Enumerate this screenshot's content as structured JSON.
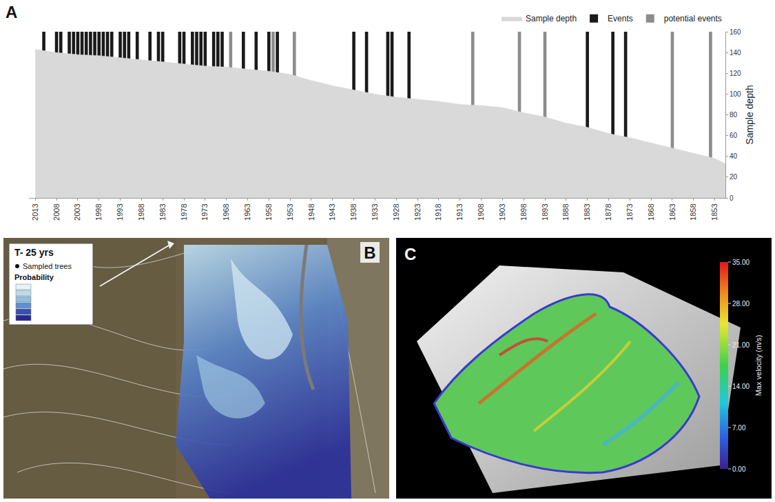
{
  "chart_data": {
    "type": "bar",
    "panel": "A",
    "xlim": [
      2014.5,
      1850.5
    ],
    "xticks": [
      2013,
      2008,
      2003,
      1998,
      1993,
      1988,
      1983,
      1978,
      1973,
      1968,
      1963,
      1958,
      1953,
      1948,
      1943,
      1938,
      1933,
      1928,
      1923,
      1918,
      1913,
      1908,
      1903,
      1898,
      1893,
      1888,
      1883,
      1878,
      1873,
      1868,
      1863,
      1858,
      1853
    ],
    "ylim": [
      0,
      160
    ],
    "yticks": [
      0,
      20,
      40,
      60,
      80,
      100,
      120,
      140,
      160
    ],
    "y_label": "Sample depth",
    "grid": false,
    "legend": "top",
    "series": [
      {
        "name": "Sample depth",
        "type": "area",
        "color": "#d9d9d9",
        "x": [
          2013,
          2008,
          2003,
          1998,
          1993,
          1988,
          1983,
          1978,
          1973,
          1968,
          1963,
          1958,
          1953,
          1948,
          1943,
          1938,
          1933,
          1928,
          1923,
          1918,
          1913,
          1908,
          1903,
          1898,
          1893,
          1888,
          1883,
          1878,
          1873,
          1868,
          1863,
          1858,
          1853,
          1850
        ],
        "values": [
          143,
          140,
          138,
          137,
          135,
          133,
          131,
          129,
          127,
          126,
          124,
          122,
          119,
          113,
          108,
          104,
          100,
          97,
          95,
          93,
          90,
          89,
          87,
          82,
          78,
          72,
          68,
          62,
          58,
          53,
          48,
          43,
          38,
          32
        ]
      },
      {
        "name": "Events",
        "type": "bar",
        "color": "#1a1a1a",
        "x": [
          2011,
          2008,
          2007,
          2005,
          2004,
          2003,
          2002,
          2001,
          2000,
          1999,
          1998,
          1997,
          1996,
          1995,
          1993,
          1992,
          1991,
          1989,
          1986,
          1984,
          1983,
          1979,
          1978,
          1976,
          1975,
          1974,
          1973,
          1971,
          1970,
          1969,
          1964,
          1961,
          1958,
          1956,
          1938,
          1935,
          1930,
          1929,
          1925,
          1883,
          1877,
          1874
        ],
        "values": [
          160,
          160,
          160,
          160,
          160,
          160,
          160,
          160,
          160,
          160,
          160,
          160,
          160,
          160,
          160,
          160,
          160,
          160,
          160,
          160,
          160,
          160,
          160,
          160,
          160,
          160,
          160,
          160,
          160,
          160,
          160,
          160,
          160,
          160,
          160,
          160,
          160,
          160,
          160,
          160,
          160,
          160
        ]
      },
      {
        "name": "potential events",
        "type": "bar",
        "color": "#8c8c8c",
        "x": [
          1967,
          1957,
          1952,
          1910,
          1899,
          1893,
          1863,
          1854
        ],
        "values": [
          160,
          160,
          160,
          160,
          160,
          160,
          160,
          160
        ]
      }
    ]
  },
  "map_panel": {
    "panel": "B",
    "title": "T- 25 yrs",
    "legend_items": [
      "Sampled trees",
      "Probability"
    ]
  },
  "render_panel": {
    "panel": "C",
    "colorbar": {
      "label": "Max velocity (m/s)",
      "range": [
        0,
        35
      ],
      "ticks": [
        {
          "value": 0,
          "label": "0.00"
        },
        {
          "value": 7,
          "label": "7.00"
        },
        {
          "value": 14,
          "label": "14.00"
        },
        {
          "value": 21,
          "label": "21.00"
        },
        {
          "value": 28,
          "label": "28.00"
        },
        {
          "value": 35,
          "label": "35.00"
        }
      ]
    }
  }
}
